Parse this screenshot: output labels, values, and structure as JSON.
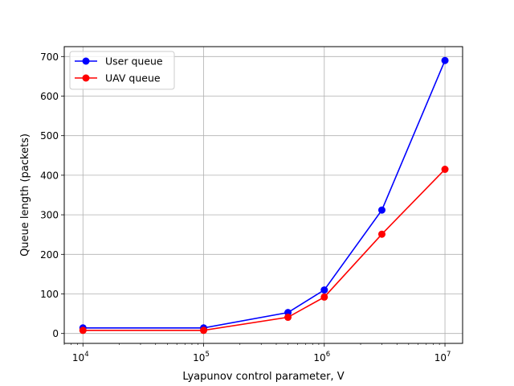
{
  "chart_data": {
    "type": "line",
    "title": "",
    "xlabel": "Lyapunov control parameter, V",
    "ylabel": "Queue length (packets)",
    "x_scale": "log",
    "xlim": [
      7000,
      14000000
    ],
    "ylim": [
      -25,
      725
    ],
    "grid": true,
    "legend_position": "top-left",
    "x": [
      10000,
      100000,
      500000,
      1000000,
      3000000,
      10000000
    ],
    "x_ticks": [
      {
        "value": 10000,
        "base": "10",
        "exp": "4"
      },
      {
        "value": 100000,
        "base": "10",
        "exp": "5"
      },
      {
        "value": 1000000,
        "base": "10",
        "exp": "6"
      },
      {
        "value": 10000000,
        "base": "10",
        "exp": "7"
      }
    ],
    "y_ticks": [
      {
        "value": 0,
        "label": "0"
      },
      {
        "value": 100,
        "label": "100"
      },
      {
        "value": 200,
        "label": "200"
      },
      {
        "value": 300,
        "label": "300"
      },
      {
        "value": 400,
        "label": "400"
      },
      {
        "value": 500,
        "label": "500"
      },
      {
        "value": 600,
        "label": "600"
      },
      {
        "value": 700,
        "label": "700"
      }
    ],
    "series": [
      {
        "name": "User queue",
        "color": "#0000ff",
        "values": [
          14,
          14,
          53,
          110,
          312,
          690
        ]
      },
      {
        "name": "UAV queue",
        "color": "#ff0000",
        "values": [
          8,
          8,
          41,
          92,
          251,
          415
        ]
      }
    ]
  }
}
